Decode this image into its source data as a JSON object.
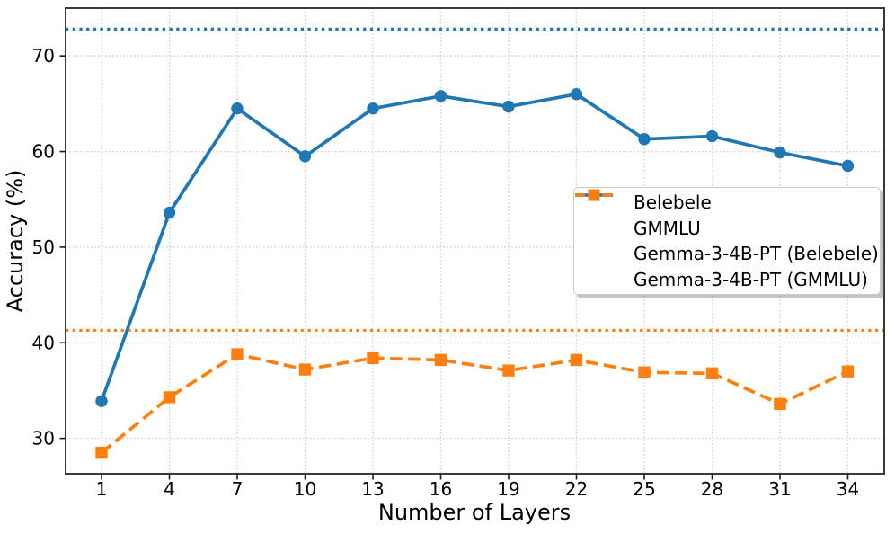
{
  "chart_data": {
    "type": "line",
    "title": "",
    "xlabel": "Number of Layers",
    "ylabel": "Accuracy (%)",
    "x_ticks": [
      1,
      4,
      7,
      10,
      13,
      16,
      19,
      22,
      25,
      28,
      31,
      34
    ],
    "y_ticks": [
      30,
      40,
      50,
      60,
      70
    ],
    "xlim": [
      -0.59,
      35.61
    ],
    "ylim": [
      26.3,
      75.0
    ],
    "grid": true,
    "grid_style": "dotted",
    "legend_position": "center right",
    "series": [
      {
        "name": "Belebele",
        "color": "#1f77b4",
        "line_style": "solid",
        "marker": "circle",
        "x": [
          1,
          4,
          7,
          10,
          13,
          16,
          19,
          22,
          25,
          28,
          31,
          34
        ],
        "y": [
          33.9,
          53.6,
          64.5,
          59.5,
          64.5,
          65.8,
          64.7,
          66.0,
          61.3,
          61.6,
          59.9,
          58.5
        ]
      },
      {
        "name": "GMMLU",
        "color": "#ff7f0e",
        "line_style": "dashed",
        "marker": "square",
        "x": [
          1,
          4,
          7,
          10,
          13,
          16,
          19,
          22,
          25,
          28,
          31,
          34
        ],
        "y": [
          28.5,
          34.3,
          38.8,
          37.2,
          38.4,
          38.2,
          37.1,
          38.2,
          36.9,
          36.8,
          33.6,
          37.0
        ]
      }
    ],
    "baselines": [
      {
        "name": "Gemma-3-4B-PT (Belebele)",
        "color": "#1f77b4",
        "line_style": "dotted",
        "value": 72.8
      },
      {
        "name": "Gemma-3-4B-PT (GMMLU)",
        "color": "#ff7f0e",
        "line_style": "dotted",
        "value": 41.3
      }
    ],
    "style": {
      "grid_color": "#c8c8c8",
      "spine_color": "#3a3a3a",
      "tick_color": "#1a1a1a"
    }
  }
}
